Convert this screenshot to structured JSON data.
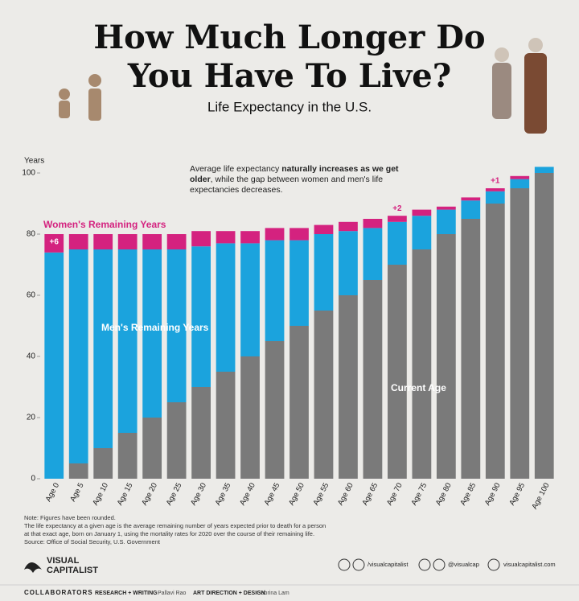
{
  "chart_data": {
    "type": "stacked_bar",
    "title": [
      "How Much Longer Do",
      "You Have To Live?"
    ],
    "subtitle": "Life Expectancy in the U.S.",
    "y_label": "Years",
    "annotation": [
      "Average life expectancy ",
      "naturally increases as we get older",
      ", while the gap between women and men's life expectancies decreases."
    ],
    "categories": [
      "Age 0",
      "Age 5",
      "Age 10",
      "Age 15",
      "Age 20",
      "Age 25",
      "Age 30",
      "Age 35",
      "Age 40",
      "Age 45",
      "Age 50",
      "Age 55",
      "Age 60",
      "Age 65",
      "Age 70",
      "Age 75",
      "Age 80",
      "Age 85",
      "Age 90",
      "Age 95",
      "Age 100"
    ],
    "series": [
      {
        "name": "Current Age",
        "color": "#7a7a7a",
        "values": [
          0,
          5,
          10,
          15,
          20,
          25,
          30,
          35,
          40,
          45,
          50,
          55,
          60,
          65,
          70,
          75,
          80,
          85,
          90,
          95,
          100
        ]
      },
      {
        "name": "Men's Remaining Years",
        "color": "#1ba3dd",
        "values": [
          74,
          70,
          65,
          60,
          55,
          50,
          46,
          42,
          37,
          33,
          28,
          25,
          21,
          17,
          14,
          11,
          8,
          6,
          4,
          3,
          2
        ]
      },
      {
        "name": "Women's Remaining Years",
        "color": "#d4227f",
        "values": [
          6,
          5,
          5,
          5,
          5,
          5,
          5,
          4,
          4,
          4,
          4,
          3,
          3,
          3,
          2,
          2,
          1,
          1,
          1,
          1,
          0
        ],
        "value_labels": [
          "+6",
          null,
          null,
          null,
          null,
          null,
          null,
          null,
          null,
          null,
          null,
          null,
          null,
          null,
          "+2",
          null,
          null,
          null,
          "+1",
          null,
          null
        ]
      }
    ],
    "ylim": [
      0,
      105
    ],
    "yticks": [
      0,
      20,
      40,
      60,
      80,
      100
    ],
    "grid": false,
    "notes": [
      "Note: Figures have been rounded.",
      "The life expectancy at a given age is the average remaining number of years expected prior to death for a person",
      "at that exact age, born on January 1, using the mortality rates for 2020 over the course of their remaining life.",
      "Source: Office of Social Security, U.S. Government"
    ]
  },
  "footer": {
    "brand": [
      "VISUAL",
      "CAPITALIST"
    ],
    "social": [
      "/visualcapitalist",
      "@visualcap",
      "visualcapitalist.com"
    ],
    "collaborators": "COLLABORATORS",
    "credits": [
      {
        "role": "RESEARCH + WRITING",
        "name": "Pallavi Rao"
      },
      {
        "role": "ART DIRECTION + DESIGN",
        "name": "Sabrina Lam"
      }
    ]
  }
}
